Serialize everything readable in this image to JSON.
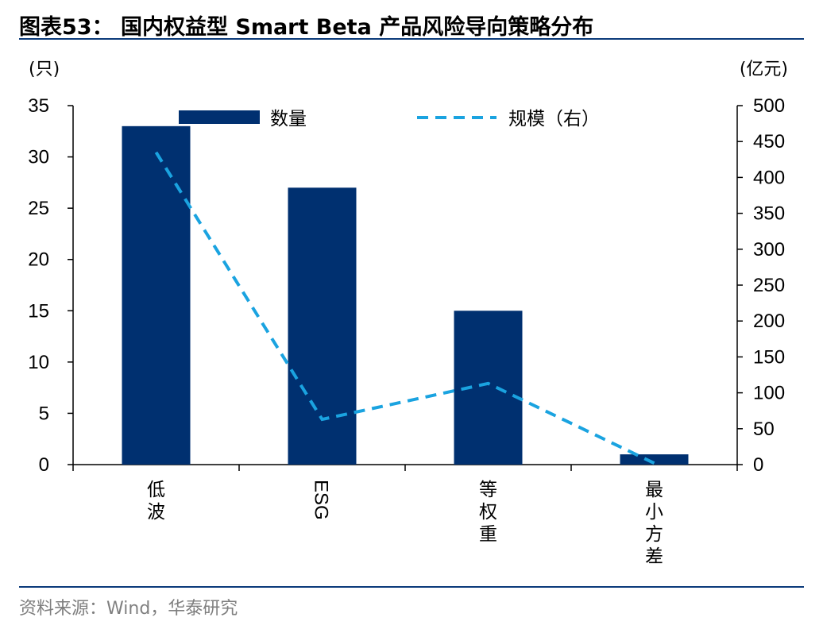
{
  "title": "图表53：  国内权益型 Smart Beta 产品风险导向策略分布",
  "source": "资料来源：Wind，华泰研究",
  "colors": {
    "bar": "#003070",
    "line": "#1aa3e0",
    "rule": "#0b3a7a"
  },
  "chart_data": {
    "type": "bar",
    "categories": [
      "低波",
      "ESG",
      "等权重",
      "最小方差"
    ],
    "y_left": {
      "unit": "(只)",
      "range": [
        0,
        35
      ],
      "ticks": [
        0,
        5,
        10,
        15,
        20,
        25,
        30,
        35
      ]
    },
    "y_right": {
      "unit": "(亿元)",
      "range": [
        0,
        500
      ],
      "ticks": [
        0,
        50,
        100,
        150,
        200,
        250,
        300,
        350,
        400,
        450,
        500
      ]
    },
    "series": [
      {
        "name": "数量",
        "type": "bar",
        "axis": "left",
        "values": [
          33,
          27,
          15,
          1
        ]
      },
      {
        "name": "规模（右）",
        "type": "line",
        "style": "dashed",
        "axis": "right",
        "values": [
          435,
          63,
          113,
          2
        ]
      }
    ],
    "legend_position": "top",
    "grid": false
  }
}
